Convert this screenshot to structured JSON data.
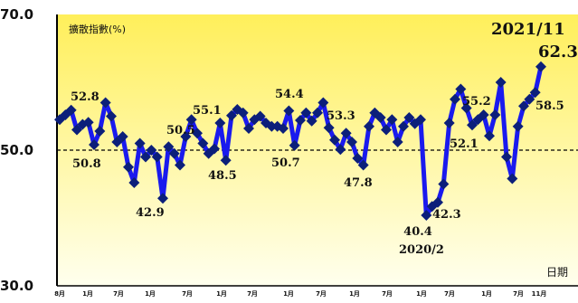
{
  "chart_data": {
    "type": "line",
    "title": "擴散指數(%)",
    "xlabel": "日期",
    "ylabel": "",
    "ylim": [
      30,
      70
    ],
    "y_ticks": [
      "30.0",
      "50.0",
      "70.0"
    ],
    "reference_line": 50,
    "x_tick_labels": [
      "8月",
      "1月",
      "7月",
      "1月",
      "7月",
      "1月",
      "7月",
      "1月",
      "7月",
      "1月",
      "7月",
      "1月",
      "7月",
      "1月",
      "7月",
      "11月"
    ],
    "series": [
      {
        "name": "",
        "color": "#1a1aee",
        "values": [
          54.5,
          55.2,
          55.9,
          53.0,
          53.8,
          54.1,
          50.8,
          52.8,
          57.0,
          55.0,
          51.2,
          52.0,
          47.5,
          45.2,
          51.0,
          49.0,
          50.0,
          49.0,
          42.9,
          50.5,
          49.5,
          47.8,
          52.0,
          54.5,
          52.5,
          51.0,
          49.5,
          50.2,
          54.0,
          48.5,
          55.1,
          56.0,
          55.5,
          53.2,
          54.5,
          55.0,
          54.0,
          53.5,
          53.5,
          53.2,
          55.8,
          50.7,
          54.4,
          55.5,
          54.3,
          55.5,
          57.0,
          53.3,
          51.5,
          50.1,
          52.5,
          51.2,
          48.8,
          47.8,
          53.5,
          55.5,
          54.8,
          53.0,
          54.5,
          51.2,
          53.5,
          54.8,
          53.9,
          54.5,
          40.4,
          41.7,
          42.3,
          45.0,
          54.0,
          57.5,
          59.0,
          56.2,
          53.7,
          54.5,
          55.2,
          52.1,
          55.2,
          60.0,
          49.0,
          45.8,
          53.5,
          56.5,
          57.5,
          58.5,
          62.3
        ]
      }
    ],
    "annotations": [
      {
        "text": "52.8",
        "index": 7
      },
      {
        "text": "50.8",
        "index": 6
      },
      {
        "text": "50.5",
        "index": 19
      },
      {
        "text": "42.9",
        "index": 18
      },
      {
        "text": "55.1",
        "index": 30
      },
      {
        "text": "48.5",
        "index": 29
      },
      {
        "text": "54.4",
        "index": 42
      },
      {
        "text": "50.7",
        "index": 41
      },
      {
        "text": "53.3",
        "index": 47
      },
      {
        "text": "47.8",
        "index": 53
      },
      {
        "text": "40.4",
        "index": 64
      },
      {
        "text": "2020/2",
        "index": 64
      },
      {
        "text": "42.3",
        "index": 66
      },
      {
        "text": "55.2",
        "index": 74
      },
      {
        "text": "52.1",
        "index": 75
      },
      {
        "text": "58.5",
        "index": 83
      },
      {
        "text": "62.3",
        "index": 84
      },
      {
        "text": "2021/11",
        "index": 84
      }
    ]
  },
  "colors": {
    "plot_top": "#ffef5a",
    "plot_bottom": "#ffffee",
    "line": "#1a1aee",
    "marker": "#0c1f7a"
  }
}
